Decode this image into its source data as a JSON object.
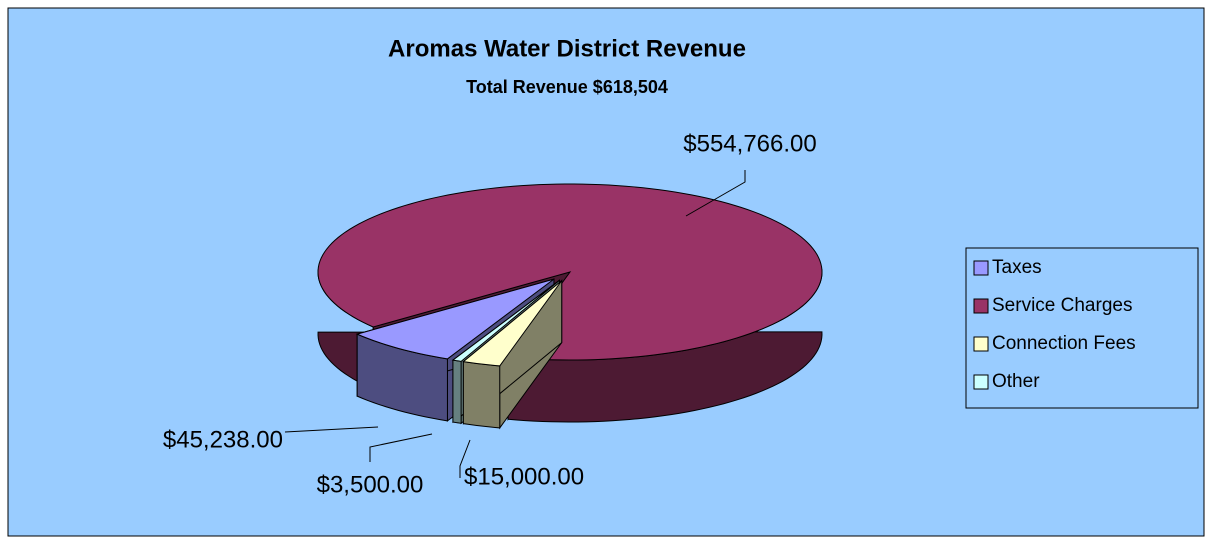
{
  "chart_data": {
    "type": "pie3d",
    "title": "Aromas Water District Revenue",
    "subtitle": "Total Revenue $618,504",
    "categories": [
      "Taxes",
      "Service Charges",
      "Connection Fees",
      "Other"
    ],
    "values": [
      45238,
      554766,
      15000,
      3500
    ],
    "value_labels": [
      "$45,238.00",
      "$554,766.00",
      "$15,000.00",
      "$3,500.00"
    ],
    "colors": [
      "#9999ff",
      "#993366",
      "#ffffcc",
      "#ccffff"
    ],
    "legend": "right"
  }
}
